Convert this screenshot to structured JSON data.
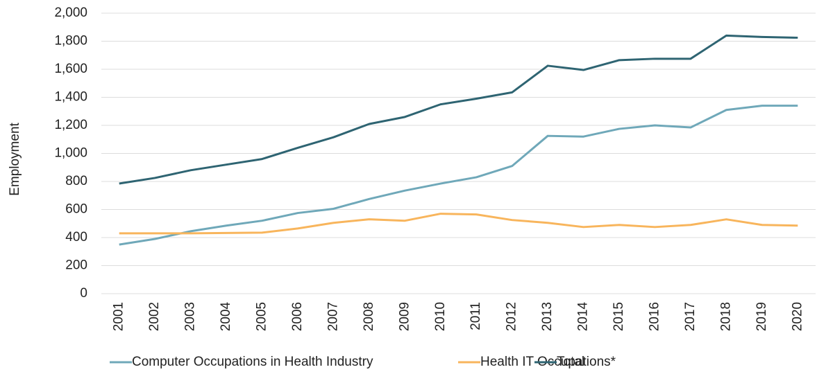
{
  "chart_data": {
    "type": "line",
    "y_label": "Employment",
    "categories": [
      "2001",
      "2002",
      "2003",
      "2004",
      "2005",
      "2006",
      "2007",
      "2008",
      "2009",
      "2010",
      "2011",
      "2012",
      "2013",
      "2014",
      "2015",
      "2016",
      "2017",
      "2018",
      "2019",
      "2020"
    ],
    "series": [
      {
        "name": "Computer Occupations in Health Industry",
        "color": "#6fa8b9",
        "values": [
          350,
          390,
          445,
          485,
          520,
          575,
          605,
          675,
          735,
          785,
          830,
          910,
          1125,
          1120,
          1175,
          1200,
          1185,
          1310,
          1340,
          1340
        ]
      },
      {
        "name": "Health IT Occupations*",
        "color": "#f8b55c",
        "values": [
          430,
          430,
          430,
          433,
          435,
          465,
          505,
          530,
          520,
          570,
          565,
          525,
          505,
          475,
          490,
          475,
          490,
          530,
          490,
          485
        ]
      },
      {
        "name": "Total",
        "color": "#2e6472",
        "values": [
          785,
          825,
          880,
          920,
          960,
          1040,
          1115,
          1210,
          1260,
          1350,
          1390,
          1435,
          1625,
          1595,
          1665,
          1675,
          1675,
          1840,
          1830,
          1825
        ]
      }
    ],
    "ylim": [
      0,
      2000
    ],
    "yticks": [
      0,
      200,
      400,
      600,
      800,
      {
        "value": 1000,
        "label": "1,000"
      },
      {
        "value": 1200,
        "label": "1,200"
      },
      {
        "value": 1400,
        "label": "1,400"
      },
      {
        "value": 1600,
        "label": "1,600"
      },
      {
        "value": 1800,
        "label": "1,800"
      },
      {
        "value": 2000,
        "label": "2,000"
      }
    ],
    "grid": true,
    "legend": "bottom"
  }
}
